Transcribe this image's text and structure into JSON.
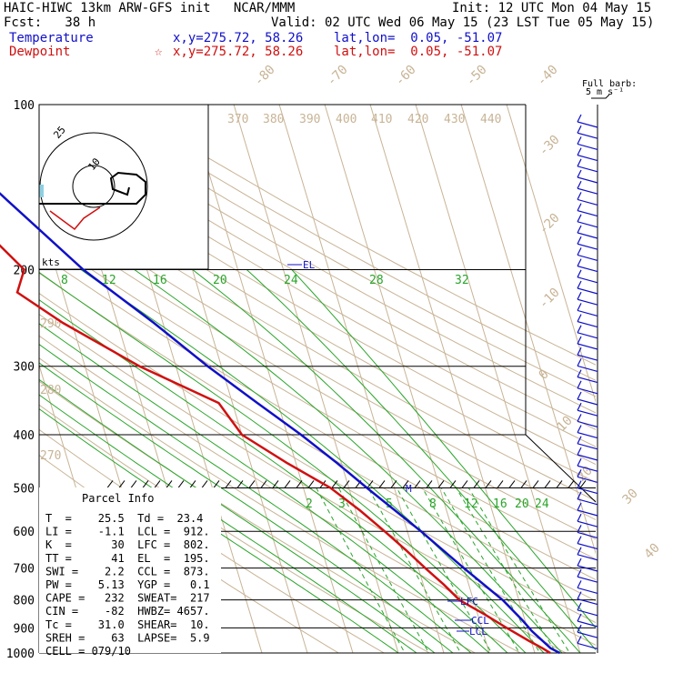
{
  "header": {
    "model": "HAIC-HIWC 13km ARW-GFS init   NCAR/MMM",
    "init": "Init: 12 UTC Mon 04 May 15",
    "fcst": "Fcst:   38 h",
    "valid": "Valid: 02 UTC Wed 06 May 15 (23 LST Tue 05 May 15)",
    "temp_label": "Temperature",
    "temp_loc": "x,y=275.72, 58.26    lat,lon=  0.05, -51.07",
    "dew_label": "Dewpoint",
    "dew_marker": "☆",
    "dew_loc": "x,y=275.72, 58.26    lat,lon=  0.05, -51.07"
  },
  "wind_key": {
    "label": "Full barb:",
    "value": "5 m s⁻¹"
  },
  "hodograph": {
    "unit": "kts",
    "ring_labels": [
      "10",
      "25"
    ]
  },
  "parcel_info": {
    "title": "Parcel Info",
    "rows": [
      "T  =    25.5  Td =  23.4",
      "LI =    -1.1  LCL =  912.",
      "K  =      30  LFC =  802.",
      "TT =      41  EL  =  195.",
      "SWI =    2.2  CCL =  873.",
      "PW =    5.13  YGP =   0.1",
      "CAPE =   232  SWEAT=  217",
      "CIN =    -82  HWBZ= 4657.",
      "Tc =    31.0  SHEAR=  10.",
      "SREH =    63  LAPSE=  5.9",
      "CELL = 079/10"
    ]
  },
  "levels": {
    "EL": "EL",
    "LFC": "LFC",
    "CCL": "CCL",
    "LCL": "LCL",
    "M": "M"
  },
  "colors": {
    "temperature": "#1010c8",
    "dewpoint": "#d01010",
    "isotherm": "#c8b496",
    "mixing_ratio": "#2aa52a",
    "isobar": "#000000",
    "wind": "#1010c8"
  },
  "chart_data": {
    "type": "skew-t log-p",
    "y_axis": "Pressure (hPa)",
    "y_scale": "log",
    "pressure_ticks": [
      100,
      200,
      300,
      400,
      500,
      600,
      700,
      800,
      900,
      1000
    ],
    "isotherm_labels": [
      "-80",
      "-70",
      "-60",
      "-50",
      "-40",
      "-30",
      "-20",
      "-10",
      "0",
      "10",
      "20",
      "30",
      "40"
    ],
    "theta_labels": [
      "370",
      "380",
      "390",
      "400",
      "410",
      "420",
      "430",
      "440",
      "290",
      "280",
      "270"
    ],
    "theta_e_labels": [
      "8",
      "12",
      "16",
      "20",
      "24",
      "28",
      "32"
    ],
    "mixing_ratio_labels": [
      "2",
      "3",
      "5",
      "8",
      "12",
      "16",
      "20",
      "24"
    ],
    "series": [
      {
        "name": "Temperature",
        "points": [
          [
            1000,
            25.5
          ],
          [
            980,
            23.8
          ],
          [
            950,
            22.5
          ],
          [
            912,
            20.8
          ],
          [
            873,
            19.5
          ],
          [
            802,
            16.5
          ],
          [
            700,
            10.0
          ],
          [
            600,
            3.0
          ],
          [
            500,
            -6.0
          ],
          [
            450,
            -11.0
          ],
          [
            400,
            -17.0
          ],
          [
            350,
            -24.5
          ],
          [
            300,
            -33.0
          ],
          [
            250,
            -42.0
          ],
          [
            200,
            -54.0
          ],
          [
            150,
            -66.0
          ],
          [
            120,
            -75.0
          ],
          [
            100,
            -73.0
          ]
        ]
      },
      {
        "name": "Dewpoint",
        "points": [
          [
            1000,
            23.4
          ],
          [
            980,
            22.0
          ],
          [
            950,
            19.5
          ],
          [
            900,
            15.5
          ],
          [
            850,
            11.5
          ],
          [
            802,
            7.0
          ],
          [
            750,
            4.5
          ],
          [
            700,
            1.5
          ],
          [
            650,
            -1.5
          ],
          [
            600,
            -5.0
          ],
          [
            550,
            -9.0
          ],
          [
            500,
            -14.0
          ],
          [
            450,
            -22.0
          ],
          [
            400,
            -30.0
          ],
          [
            350,
            -33.0
          ],
          [
            300,
            -48.0
          ],
          [
            250,
            -62.0
          ],
          [
            220,
            -70.0
          ],
          [
            200,
            -67.0
          ],
          [
            170,
            -73.0
          ],
          [
            150,
            -78.0
          ],
          [
            120,
            -84.0
          ],
          [
            100,
            -84.0
          ]
        ]
      }
    ],
    "hodograph_trace": [
      [
        0,
        0
      ],
      [
        -0.25,
        0.1
      ],
      [
        -0.9,
        0.15
      ],
      [
        -1.0,
        0.1
      ],
      [
        -1.1,
        0.15
      ]
    ],
    "hodograph_surface_trace": [
      [
        -1.0,
        0.15
      ],
      [
        -0.7,
        0.25
      ],
      [
        -0.5,
        0.55
      ],
      [
        -0.35,
        0.45
      ]
    ]
  }
}
